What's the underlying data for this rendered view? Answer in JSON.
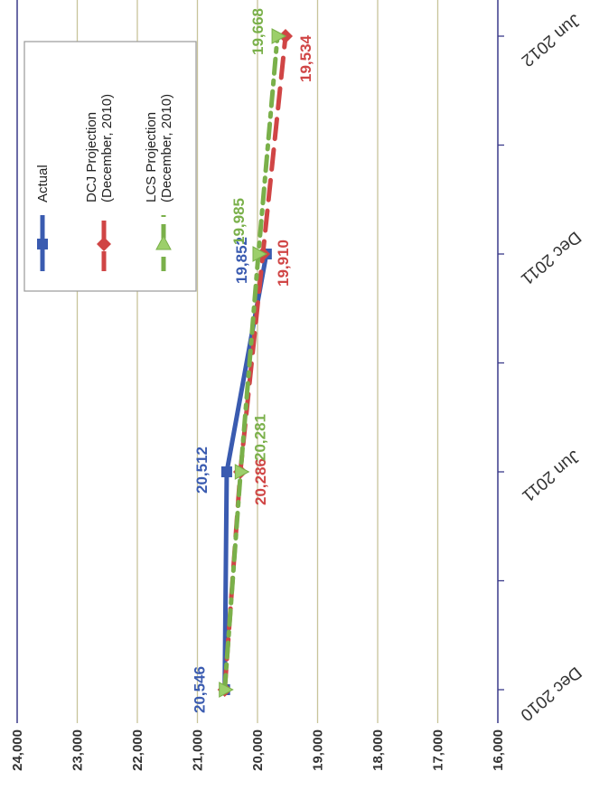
{
  "chart_data": {
    "type": "line",
    "title": "",
    "categories": [
      "Dec 2010",
      "Jun 2011",
      "Dec 2011",
      "Jun 2012"
    ],
    "ylim": [
      16000,
      24000
    ],
    "y_ticks": [
      "24,000",
      "23,000",
      "22,000",
      "21,000",
      "20,000",
      "19,000",
      "18,000",
      "17,000",
      "16,000"
    ],
    "grid": true,
    "legend_position": "top-right",
    "series": [
      {
        "name": "Actual",
        "color": "#3a5bb0",
        "x": [
          "Dec 2010",
          "Jun 2011",
          "Dec 2011"
        ],
        "values": [
          20546,
          20512,
          19852
        ],
        "labels": [
          "20,546",
          "20,512",
          "19,852"
        ]
      },
      {
        "name": "DCJ Projection (December, 2010)",
        "color": "#d04545",
        "x": [
          "Dec 2010",
          "Jun 2011",
          "Dec 2011",
          "Jun 2012"
        ],
        "values": [
          20546,
          20286,
          19910,
          19534
        ],
        "labels": [
          "",
          "20,286",
          "19,910",
          "19,534"
        ]
      },
      {
        "name": "LCS Projection (December, 2010)",
        "color": "#7ab04a",
        "x": [
          "Dec 2010",
          "Jun 2011",
          "Dec 2011",
          "Jun 2012"
        ],
        "values": [
          20546,
          20281,
          19985,
          19668
        ],
        "labels": [
          "",
          "20,281",
          "19,985",
          "19,668"
        ]
      }
    ],
    "legend": {
      "line1": [
        "Actual",
        "DCJ Projection",
        "LCS Projection"
      ],
      "line2": [
        "",
        "(December, 2010)",
        "(December, 2010)"
      ]
    }
  }
}
